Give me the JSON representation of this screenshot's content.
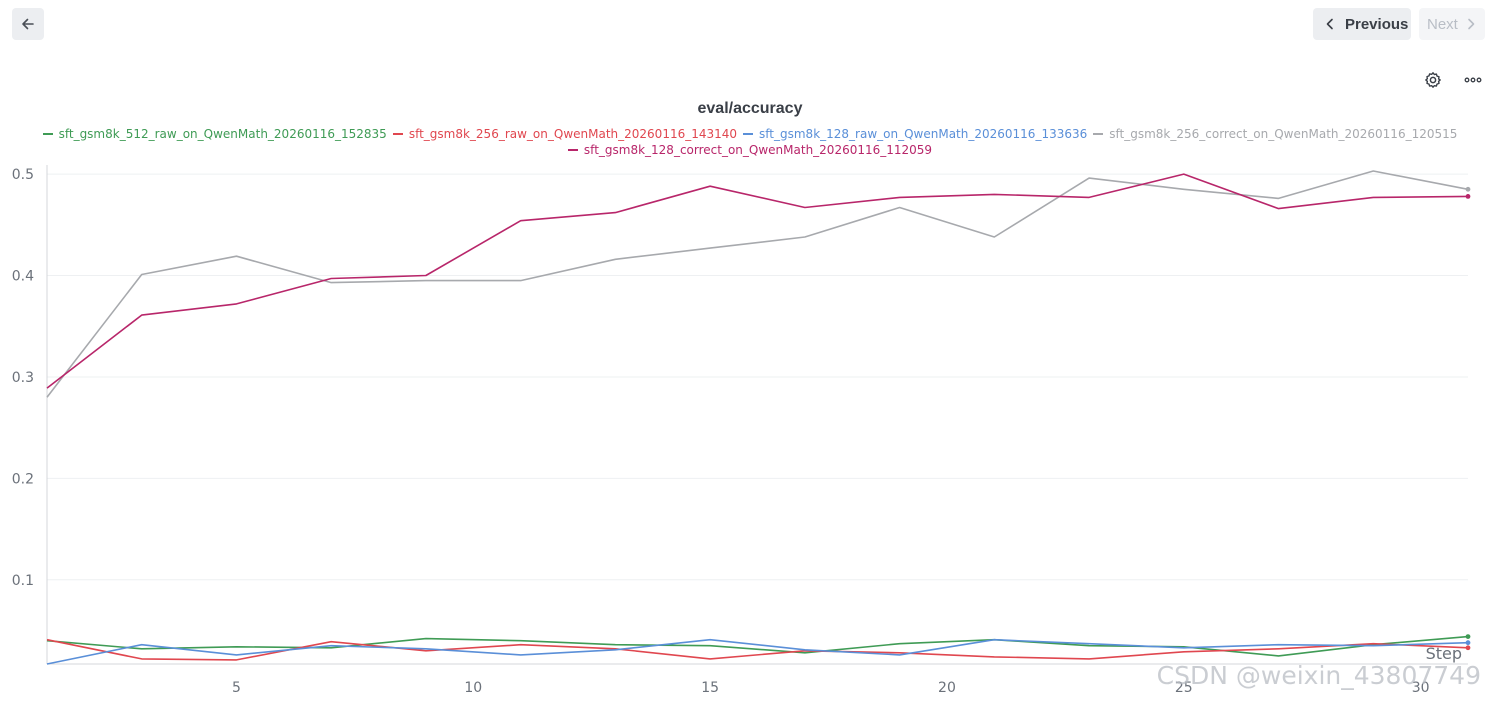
{
  "nav": {
    "back_icon": "arrow-left-icon",
    "previous_label": "Previous",
    "next_label": "Next"
  },
  "toolbar": {
    "settings_icon": "gear-icon",
    "more_icon": "more-horizontal-icon"
  },
  "colors": {
    "green": "#3f9b55",
    "red": "#e0474f",
    "blue": "#5a8fd8",
    "gray": "#a7a9ad",
    "magenta": "#b8266a"
  },
  "watermark": "CSDN @weixin_43807749",
  "chart_data": {
    "type": "line",
    "title": "eval/accuracy",
    "xlabel": "Step",
    "ylabel": "",
    "xlim": [
      1,
      31
    ],
    "ylim": [
      0.017,
      0.505
    ],
    "x_ticks": [
      5,
      10,
      15,
      20,
      25,
      30
    ],
    "y_ticks": [
      0.1,
      0.2,
      0.3,
      0.4,
      0.5
    ],
    "grid": true,
    "legend_position": "top",
    "series": [
      {
        "name": "sft_gsm8k_512_raw_on_QwenMath_20260116_152835",
        "color": "#3f9b55",
        "x": [
          1,
          3,
          5,
          7,
          9,
          11,
          13,
          15,
          17,
          19,
          21,
          23,
          25,
          27,
          29,
          31
        ],
        "values": [
          0.04,
          0.032,
          0.034,
          0.033,
          0.042,
          0.04,
          0.036,
          0.035,
          0.028,
          0.037,
          0.041,
          0.035,
          0.034,
          0.025,
          0.036,
          0.044
        ]
      },
      {
        "name": "sft_gsm8k_256_raw_on_QwenMath_20260116_143140",
        "color": "#e0474f",
        "x": [
          1,
          3,
          5,
          7,
          9,
          11,
          13,
          15,
          17,
          19,
          21,
          23,
          25,
          27,
          29,
          31
        ],
        "values": [
          0.041,
          0.022,
          0.021,
          0.039,
          0.03,
          0.036,
          0.032,
          0.022,
          0.03,
          0.028,
          0.024,
          0.022,
          0.029,
          0.032,
          0.037,
          0.033
        ]
      },
      {
        "name": "sft_gsm8k_128_raw_on_QwenMath_20260116_133636",
        "color": "#5a8fd8",
        "x": [
          1,
          3,
          5,
          7,
          9,
          11,
          13,
          15,
          17,
          19,
          21,
          23,
          25,
          27,
          29,
          31
        ],
        "values": [
          0.017,
          0.036,
          0.026,
          0.035,
          0.032,
          0.026,
          0.031,
          0.041,
          0.031,
          0.026,
          0.041,
          0.037,
          0.033,
          0.036,
          0.035,
          0.038
        ]
      },
      {
        "name": "sft_gsm8k_256_correct_on_QwenMath_20260116_120515",
        "color": "#a7a9ad",
        "x": [
          1,
          3,
          5,
          7,
          9,
          11,
          13,
          15,
          17,
          19,
          21,
          23,
          25,
          27,
          29,
          31
        ],
        "values": [
          0.28,
          0.401,
          0.419,
          0.393,
          0.395,
          0.395,
          0.416,
          0.427,
          0.438,
          0.467,
          0.438,
          0.496,
          0.485,
          0.476,
          0.503,
          0.485
        ]
      },
      {
        "name": "sft_gsm8k_128_correct_on_QwenMath_20260116_112059",
        "color": "#b8266a",
        "x": [
          1,
          3,
          5,
          7,
          9,
          11,
          13,
          15,
          17,
          19,
          21,
          23,
          25,
          27,
          29,
          31
        ],
        "values": [
          0.289,
          0.361,
          0.372,
          0.397,
          0.4,
          0.454,
          0.462,
          0.488,
          0.467,
          0.477,
          0.48,
          0.477,
          0.5,
          0.466,
          0.477,
          0.478
        ]
      }
    ]
  }
}
